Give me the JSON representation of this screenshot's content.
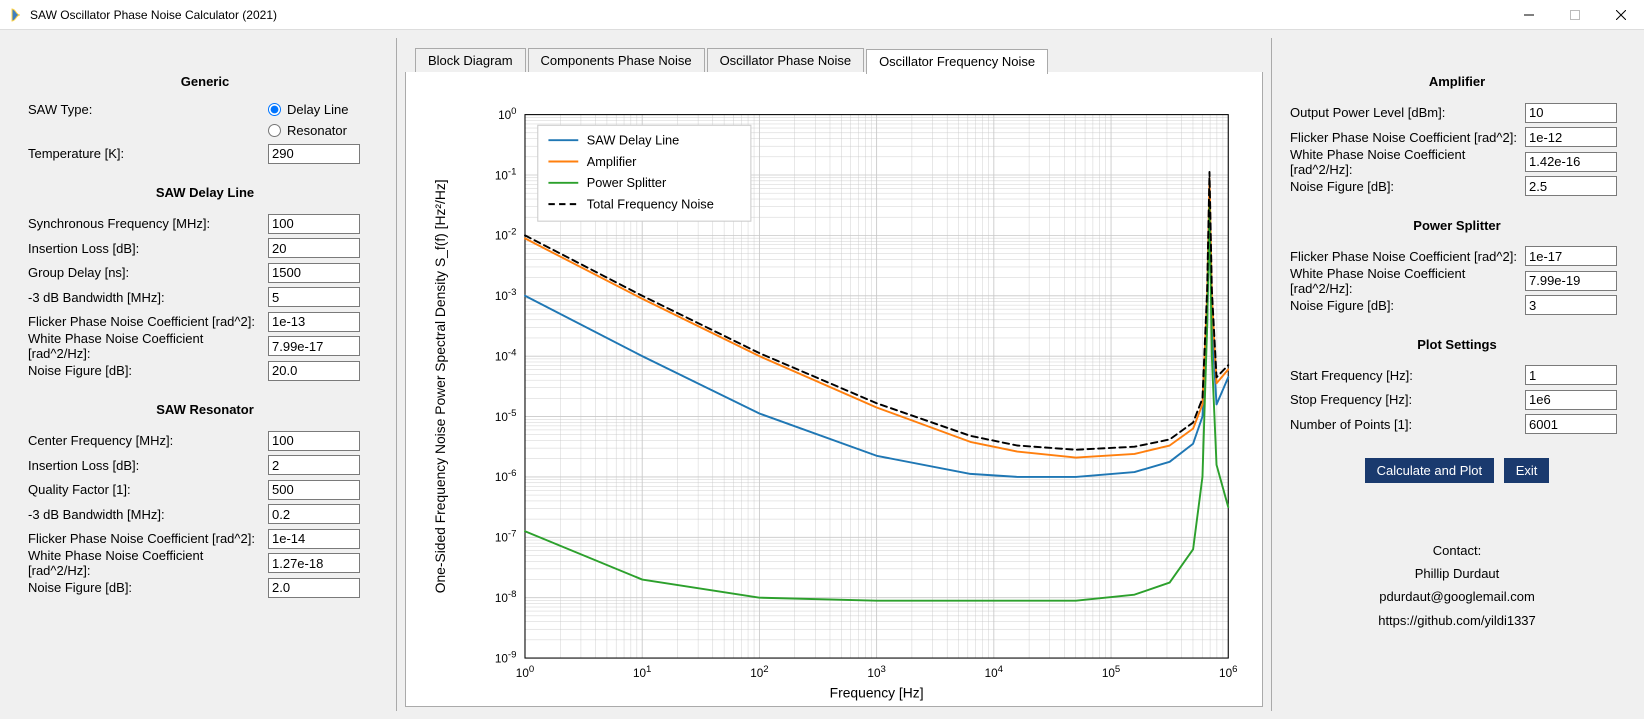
{
  "window": {
    "title": "SAW Oscillator Phase Noise Calculator (2021)"
  },
  "left": {
    "generic": {
      "heading": "Generic",
      "saw_type_label": "SAW Type:",
      "saw_type_options": {
        "delay_line": "Delay Line",
        "resonator": "Resonator"
      },
      "saw_type_selected": "delay_line",
      "temperature_label": "Temperature [K]:",
      "temperature_value": "290"
    },
    "delay_line": {
      "heading": "SAW Delay Line",
      "rows": [
        {
          "label": "Synchronous Frequency [MHz]:",
          "value": "100"
        },
        {
          "label": "Insertion Loss [dB]:",
          "value": "20"
        },
        {
          "label": "Group Delay [ns]:",
          "value": "1500"
        },
        {
          "label": "-3 dB Bandwidth [MHz]:",
          "value": "5"
        },
        {
          "label": "Flicker Phase Noise Coefficient [rad^2]:",
          "value": "1e-13"
        },
        {
          "label": "White Phase Noise Coefficient [rad^2/Hz]:",
          "value": "7.99e-17"
        },
        {
          "label": "Noise Figure [dB]:",
          "value": "20.0"
        }
      ]
    },
    "resonator": {
      "heading": "SAW Resonator",
      "rows": [
        {
          "label": "Center Frequency [MHz]:",
          "value": "100"
        },
        {
          "label": "Insertion Loss [dB]:",
          "value": "2"
        },
        {
          "label": "Quality Factor [1]:",
          "value": "500"
        },
        {
          "label": "-3 dB Bandwidth [MHz]:",
          "value": "0.2"
        },
        {
          "label": "Flicker Phase Noise Coefficient [rad^2]:",
          "value": "1e-14"
        },
        {
          "label": "White Phase Noise Coefficient [rad^2/Hz]:",
          "value": "1.27e-18"
        },
        {
          "label": "Noise Figure [dB]:",
          "value": "2.0"
        }
      ]
    }
  },
  "tabs": {
    "items": [
      "Block Diagram",
      "Components Phase Noise",
      "Oscillator Phase Noise",
      "Oscillator Frequency Noise"
    ],
    "active": 3
  },
  "chart": {
    "type": "line",
    "xlabel": "Frequency [Hz]",
    "ylabel": "One-Sided Frequency Noise Power Spectral Density S_f(f) [Hz²/Hz]",
    "xscale": "log",
    "yscale": "log",
    "xlim_exp": [
      0,
      6
    ],
    "ylim_exp": [
      -9,
      0
    ],
    "label_fontsize": 13,
    "tick_fontsize": 11,
    "background_color": "#ffffff",
    "grid_color": "#c8c8c8",
    "axis_color": "#000000",
    "legend": {
      "position": "upper-left",
      "items": [
        {
          "label": "SAW Delay Line",
          "color": "#1f77b4",
          "dash": "none",
          "width": 1.8
        },
        {
          "label": "Amplifier",
          "color": "#ff7f0e",
          "dash": "none",
          "width": 1.8
        },
        {
          "label": "Power Splitter",
          "color": "#2ca02c",
          "dash": "none",
          "width": 1.8
        },
        {
          "label": "Total Frequency Noise",
          "color": "#000000",
          "dash": "6,4",
          "width": 1.8
        }
      ]
    },
    "series": [
      {
        "name": "SAW Delay Line",
        "color": "#1f77b4",
        "dash": "none",
        "width": 1.8,
        "points_logx_logy": [
          [
            0,
            -3.0
          ],
          [
            1,
            -4.0
          ],
          [
            2,
            -4.95
          ],
          [
            3,
            -5.65
          ],
          [
            3.8,
            -5.95
          ],
          [
            4.2,
            -6.0
          ],
          [
            4.7,
            -6.0
          ],
          [
            5.2,
            -5.92
          ],
          [
            5.5,
            -5.75
          ],
          [
            5.7,
            -5.45
          ],
          [
            5.78,
            -5.0
          ],
          [
            5.82,
            -3.5
          ],
          [
            5.84,
            -1.5
          ],
          [
            5.86,
            -3.5
          ],
          [
            5.9,
            -4.8
          ],
          [
            6.0,
            -4.35
          ]
        ]
      },
      {
        "name": "Amplifier",
        "color": "#ff7f0e",
        "dash": "none",
        "width": 1.8,
        "points_logx_logy": [
          [
            0,
            -2.05
          ],
          [
            1,
            -3.05
          ],
          [
            2,
            -4.0
          ],
          [
            3,
            -4.85
          ],
          [
            3.8,
            -5.42
          ],
          [
            4.2,
            -5.58
          ],
          [
            4.7,
            -5.68
          ],
          [
            5.2,
            -5.62
          ],
          [
            5.5,
            -5.48
          ],
          [
            5.7,
            -5.2
          ],
          [
            5.78,
            -4.8
          ],
          [
            5.82,
            -3.0
          ],
          [
            5.84,
            -1.05
          ],
          [
            5.86,
            -3.0
          ],
          [
            5.9,
            -4.45
          ],
          [
            6.0,
            -4.22
          ]
        ]
      },
      {
        "name": "Power Splitter",
        "color": "#2ca02c",
        "dash": "none",
        "width": 1.8,
        "points_logx_logy": [
          [
            0,
            -6.9
          ],
          [
            1,
            -7.7
          ],
          [
            2,
            -8.0
          ],
          [
            3,
            -8.05
          ],
          [
            4,
            -8.05
          ],
          [
            4.7,
            -8.05
          ],
          [
            5.2,
            -7.95
          ],
          [
            5.5,
            -7.75
          ],
          [
            5.7,
            -7.2
          ],
          [
            5.78,
            -6.0
          ],
          [
            5.82,
            -3.5
          ],
          [
            5.84,
            -1.5
          ],
          [
            5.86,
            -4.0
          ],
          [
            5.9,
            -5.8
          ],
          [
            6.0,
            -6.5
          ]
        ]
      },
      {
        "name": "Total Frequency Noise",
        "color": "#000000",
        "dash": "6,4",
        "width": 1.8,
        "points_logx_logy": [
          [
            0,
            -2.0
          ],
          [
            1,
            -3.0
          ],
          [
            2,
            -3.95
          ],
          [
            3,
            -4.78
          ],
          [
            3.8,
            -5.32
          ],
          [
            4.2,
            -5.48
          ],
          [
            4.7,
            -5.55
          ],
          [
            5.2,
            -5.5
          ],
          [
            5.5,
            -5.38
          ],
          [
            5.7,
            -5.1
          ],
          [
            5.78,
            -4.7
          ],
          [
            5.82,
            -2.9
          ],
          [
            5.84,
            -0.95
          ],
          [
            5.86,
            -2.9
          ],
          [
            5.9,
            -4.35
          ],
          [
            6.0,
            -4.15
          ]
        ]
      }
    ]
  },
  "right": {
    "amplifier": {
      "heading": "Amplifier",
      "rows": [
        {
          "label": "Output Power Level [dBm]:",
          "value": "10"
        },
        {
          "label": "Flicker Phase Noise Coefficient [rad^2]:",
          "value": "1e-12"
        },
        {
          "label": "White Phase Noise Coefficient [rad^2/Hz]:",
          "value": "1.42e-16"
        },
        {
          "label": "Noise Figure [dB]:",
          "value": "2.5"
        }
      ]
    },
    "splitter": {
      "heading": "Power Splitter",
      "rows": [
        {
          "label": "Flicker Phase Noise Coefficient [rad^2]:",
          "value": "1e-17"
        },
        {
          "label": "White Phase Noise Coefficient [rad^2/Hz]:",
          "value": "7.99e-19"
        },
        {
          "label": "Noise Figure [dB]:",
          "value": "3"
        }
      ]
    },
    "plot": {
      "heading": "Plot Settings",
      "rows": [
        {
          "label": "Start Frequency [Hz]:",
          "value": "1"
        },
        {
          "label": "Stop Frequency [Hz]:",
          "value": "1e6"
        },
        {
          "label": "Number of Points [1]:",
          "value": "6001"
        }
      ]
    },
    "buttons": {
      "calc": "Calculate and Plot",
      "exit": "Exit"
    },
    "contact": {
      "heading": "Contact:",
      "lines": [
        "Phillip Durdaut",
        "pdurdaut@googlemail.com",
        "https://github.com/yildi1337"
      ]
    }
  }
}
